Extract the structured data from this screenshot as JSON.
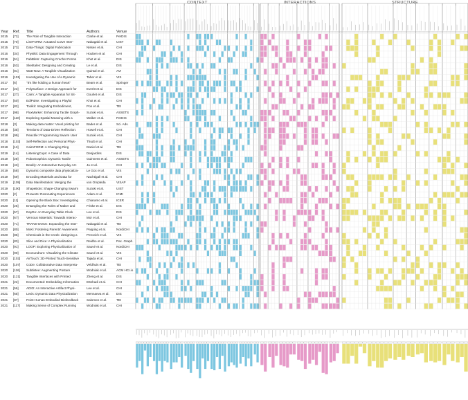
{
  "sections": [
    {
      "title": "CONTEXT",
      "color": "#7cc6e0",
      "groups": [
        6,
        6,
        5,
        4,
        5,
        6,
        4,
        5,
        2
      ]
    },
    {
      "title": "INTERACTIONS",
      "color": "#e69ac8",
      "groups": [
        2,
        3,
        5,
        3,
        6,
        3
      ]
    },
    {
      "title": "STRUCTURE",
      "color": "#e8e07a",
      "groups": [
        6,
        6,
        3,
        2,
        3,
        3,
        3,
        3
      ]
    }
  ],
  "table": {
    "headers": {
      "year": "Year",
      "ref": "Ref.",
      "title": "Title",
      "authors": "Authors",
      "venue": "Venue"
    },
    "rows": [
      {
        "year": "2015",
        "ref": "[72]",
        "title": "The Role of Tangible Interaction",
        "authors": "Clarke et al.",
        "venue": "PerDIS"
      },
      {
        "year": "2015",
        "ref": "[70]",
        "title": "LineFORM: Actuated Curve Inter-",
        "authors": "Nakagaki et al.",
        "venue": "UIST"
      },
      {
        "year": "2015",
        "ref": "[73]",
        "title": "Data-Things: Digital Fabrication",
        "authors": "Nissen et al.",
        "venue": "CHI"
      },
      {
        "year": "2016",
        "ref": "[34]",
        "title": "Physikit: Data Engagement Through",
        "authors": "Houben et al.",
        "venue": "CHI"
      },
      {
        "year": "2016",
        "ref": "[51]",
        "title": "FabBlets: Capturing Crochet Forms",
        "authors": "Khot et al.",
        "venue": "DIS"
      },
      {
        "year": "2016",
        "ref": "[53]",
        "title": "Sketitales: Designing and Creating",
        "authors": "Le et al.",
        "venue": "DIS"
      },
      {
        "year": "2016",
        "ref": "[81]",
        "title": "Watt-Now: A Tangible Visualization",
        "authors": "Quintal et al.",
        "venue": "AVI"
      },
      {
        "year": "2016",
        "ref": "[101]",
        "title": "Investigating the Use of a Dynamic",
        "authors": "Taher et al.",
        "venue": "VIS"
      },
      {
        "year": "2017",
        "ref": "[6]",
        "title": "\"It's like holding a human heart\"",
        "authors": "Bearn et al.",
        "venue": "Springer"
      },
      {
        "year": "2017",
        "ref": "[23]",
        "title": "PolySurface: A Design Approach for",
        "authors": "Everitt et al.",
        "venue": "DIS"
      },
      {
        "year": "2017",
        "ref": "[27]",
        "title": "Cairn: A Tangible Apparatus for Sit-",
        "authors": "Gourlet et al.",
        "venue": "DIS"
      },
      {
        "year": "2017",
        "ref": "[50]",
        "title": "EdiPulse: Investigating a Playful",
        "authors": "Khot et al.",
        "venue": "CHI"
      },
      {
        "year": "2017",
        "ref": "[82]",
        "title": "Toolkit: Integrating Embodiment,",
        "authors": "Pon et al.",
        "venue": "TEI"
      },
      {
        "year": "2017",
        "ref": "[98]",
        "title": "FluxMarker: Enhancing Tactile Graph-",
        "authors": "Suzuki et al.",
        "venue": "ASSETS"
      },
      {
        "year": "2017",
        "ref": "[110]",
        "title": "Exploring Spatial Meaning with a",
        "authors": "Walker et al.",
        "venue": "PerDIS"
      },
      {
        "year": "2018",
        "ref": "[3]",
        "title": "Making data matter: Voxel printing for",
        "authors": "Bader et al.",
        "venue": "Sci. Adv."
      },
      {
        "year": "2018",
        "ref": "[35]",
        "title": "Tensions of Data-Driven Reflection:",
        "authors": "Howell et al.",
        "venue": "CHI"
      },
      {
        "year": "2018",
        "ref": "[99]",
        "title": "Reactile: Programming Swarm User",
        "authors": "Suzuki et al.",
        "venue": "CHI"
      },
      {
        "year": "2018",
        "ref": "[103]",
        "title": "Self-Reflection and Personal Phys-",
        "authors": "Thudt et al.",
        "venue": "CHI"
      },
      {
        "year": "2018",
        "ref": "[13]",
        "title": "CairnFORM: A Changing Ring",
        "authors": "Daniel et al.",
        "venue": "TEI"
      },
      {
        "year": "2019",
        "ref": "[14]",
        "title": "ListeningCups: A Case of Data",
        "authors": "Desjardins",
        "venue": "DIS"
      },
      {
        "year": "2019",
        "ref": "[28]",
        "title": "RoboGraphics: Dynamic Tactile",
        "authors": "Guinness et al.",
        "venue": "ASSETS"
      },
      {
        "year": "2019",
        "ref": "[43]",
        "title": "Bookly: An Interactive Everyday Art-",
        "authors": "Ju et al.",
        "venue": "CHI"
      },
      {
        "year": "2019",
        "ref": "[58]",
        "title": "Dynamic composite data physicaliza-",
        "authors": "Le Goc et al.",
        "venue": "VIS"
      },
      {
        "year": "2019",
        "ref": "[69]",
        "title": "Encoding Materials and Data for",
        "authors": "Nachtigall et al.",
        "venue": "CHI"
      },
      {
        "year": "2019",
        "ref": "[109]",
        "title": "Data Manifestation: Merging the",
        "authors": "von Ompteda",
        "venue": "VISAP"
      },
      {
        "year": "2019",
        "ref": "[100]",
        "title": "ShapeBots: Shape-Changing Swarm",
        "authors": "Suzuki et al.",
        "venue": "UIST"
      },
      {
        "year": "2020",
        "ref": "[2]",
        "title": "PHaunts: Resonating Experiences",
        "authors": "Adam et al.",
        "venue": "ICMI"
      },
      {
        "year": "2020",
        "ref": "[11]",
        "title": "Opening the Black Box: Investigating",
        "authors": "Chiaramo et al.",
        "venue": "ICER"
      },
      {
        "year": "2020",
        "ref": "[25]",
        "title": "Entangling the Roles of Maker and",
        "authors": "Friske et al.",
        "venue": "DIS"
      },
      {
        "year": "2020",
        "ref": "[57]",
        "title": "DayDo: An Everyday Table Clock",
        "authors": "Lee et al.",
        "venue": "DIS"
      },
      {
        "year": "2020",
        "ref": "[67]",
        "title": "Vernous Materials: Towards Interac-",
        "authors": "Mor et al.",
        "venue": "CHI"
      },
      {
        "year": "2020",
        "ref": "[71]",
        "title": "TRANS-DOCK: Expanding the Inter-",
        "authors": "Nakagaki et al.",
        "venue": "TEI"
      },
      {
        "year": "2020",
        "ref": "[80]",
        "title": "MoKi: Fostering Parents' Awareness",
        "authors": "Pepping et al.",
        "venue": "NordiCHI"
      },
      {
        "year": "2020",
        "ref": "[86]",
        "title": "Chemicals in the Creek: designing a",
        "authors": "Perovich et al.",
        "venue": "VIS"
      },
      {
        "year": "2020",
        "ref": "[83]",
        "title": "Slice and Dice: A Physicalization",
        "authors": "Reidbo et al.",
        "venue": "Pac. Graph."
      },
      {
        "year": "2020",
        "ref": "[91]",
        "title": "LOOP: Exploring Physicalization of",
        "authors": "Sauvé et al.",
        "venue": "NordiCHI"
      },
      {
        "year": "2020",
        "ref": "[90]",
        "title": "Econundrum: Visualizing the Climate",
        "authors": "Sauvé et al.",
        "venue": "VIS"
      },
      {
        "year": "2020",
        "ref": "[102]",
        "title": "AirTouch: 3D-Printed Touch-Sensitive",
        "authors": "Tajada et al.",
        "venue": "CHI"
      },
      {
        "year": "2020",
        "ref": "[107]",
        "title": "CoDe: Collaborative Data Interpreta-",
        "authors": "Veldhuis et al.",
        "venue": "TEI"
      },
      {
        "year": "2020",
        "ref": "[116]",
        "title": "Subtletee: Augmenting Posture",
        "authors": "Wodniak et al.",
        "venue": "ACM HCI.io"
      },
      {
        "year": "2020",
        "ref": "[121]",
        "title": "Tangible Interfaces with Printed",
        "authors": "Zheng et al.",
        "venue": "DIS"
      },
      {
        "year": "2021",
        "ref": "[22]",
        "title": "Documented: Embedding Information",
        "authors": "Ettehadi et al.",
        "venue": "CHI"
      },
      {
        "year": "2021",
        "ref": "[56]",
        "title": "ADIO: An Interactive Artifact Physi-",
        "authors": "Lee et al.",
        "venue": "CHI"
      },
      {
        "year": "2021",
        "ref": "[65]",
        "title": "Lexis: Dynamic Data Physicalization",
        "authors": "Mennaeva et al.",
        "venue": "DIS"
      },
      {
        "year": "2021",
        "ref": "[87]",
        "title": "Point-Human Embodied Biofeedback",
        "authors": "Salomon et al.",
        "venue": "TEI"
      },
      {
        "year": "2021",
        "ref": "[117]",
        "title": "Making Sense of Complex Running",
        "authors": "Wodniak et al.",
        "venue": "CHI"
      }
    ]
  }
}
